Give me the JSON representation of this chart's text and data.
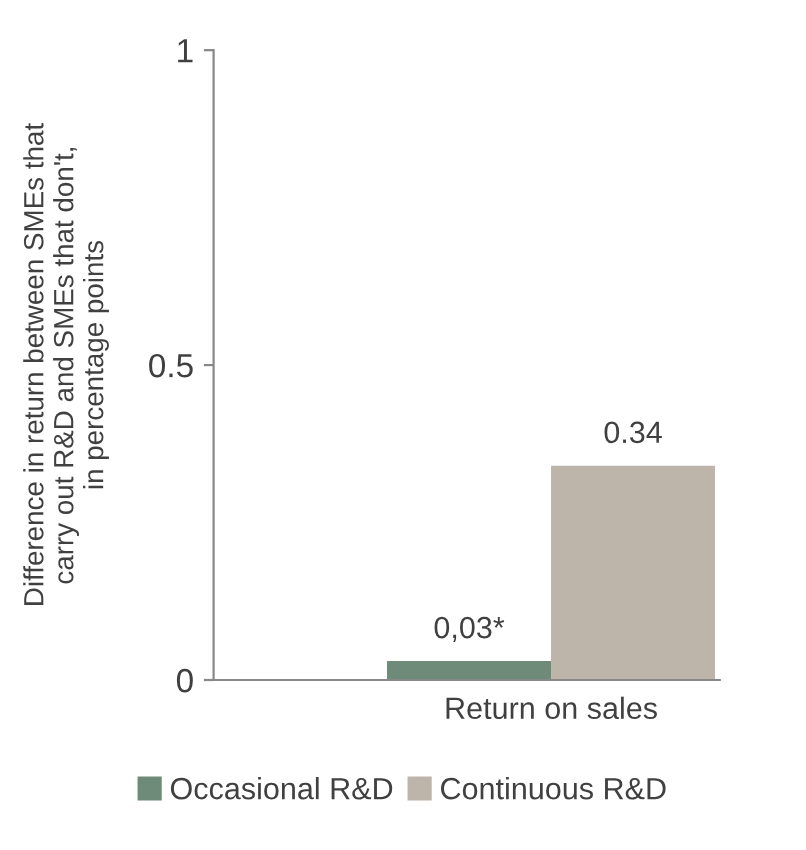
{
  "chart_data": {
    "type": "bar",
    "ylabel": "Difference in return between SMEs that\ncarry out R&D and SMEs that don't,\nin percentage points",
    "categories": [
      "Return on sales"
    ],
    "series": [
      {
        "name": "Occasional R&D",
        "color": "#6e8a78",
        "values": [
          0.03
        ],
        "value_labels": [
          "0,03*"
        ]
      },
      {
        "name": "Continuous R&D",
        "color": "#bdb4aa",
        "values": [
          0.34
        ],
        "value_labels": [
          "0.34"
        ]
      }
    ],
    "ylim": [
      0,
      1
    ],
    "yticks": [
      0,
      0.5,
      1
    ],
    "grid": false,
    "legend": "bottom"
  }
}
